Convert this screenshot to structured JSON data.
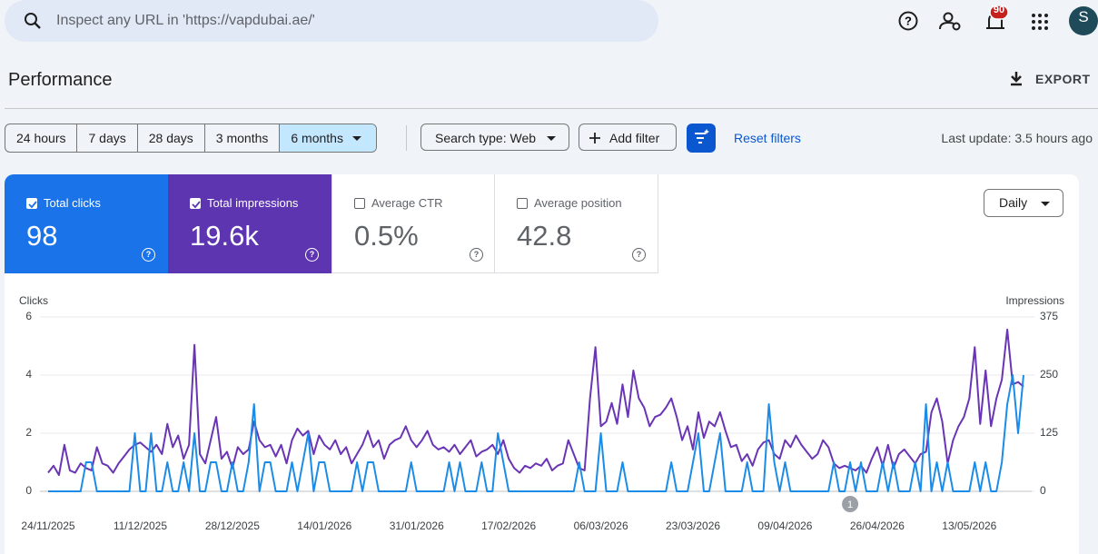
{
  "search": {
    "placeholder": "Inspect any URL in 'https://vapdubai.ae/'"
  },
  "header": {
    "notifications": "90",
    "avatar": "S"
  },
  "page": {
    "title": "Performance",
    "export": "EXPORT"
  },
  "filters": {
    "ranges": [
      "24 hours",
      "7 days",
      "28 days",
      "3 months",
      "6 months"
    ],
    "search_type": "Search type: Web",
    "add_filter": "Add filter",
    "reset": "Reset filters",
    "last_update": "Last update: 3.5 hours ago"
  },
  "metrics": [
    {
      "label": "Total clicks",
      "value": "98"
    },
    {
      "label": "Total impressions",
      "value": "19.6k"
    },
    {
      "label": "Average CTR",
      "value": "0.5%"
    },
    {
      "label": "Average position",
      "value": "42.8"
    }
  ],
  "granularity": "Daily",
  "chart_data": {
    "type": "line",
    "x": [
      "24/11/2025",
      "25/11/2025",
      "26/11/2025",
      "27/11/2025",
      "28/11/2025",
      "29/11/2025",
      "30/11/2025",
      "01/12/2025",
      "02/12/2025",
      "03/12/2025",
      "04/12/2025",
      "05/12/2025",
      "06/12/2025",
      "07/12/2025",
      "08/12/2025",
      "09/12/2025",
      "10/12/2025",
      "11/12/2025",
      "12/12/2025",
      "13/12/2025",
      "14/12/2025",
      "15/12/2025",
      "16/12/2025",
      "17/12/2025",
      "18/12/2025",
      "19/12/2025",
      "20/12/2025",
      "21/12/2025",
      "22/12/2025",
      "23/12/2025",
      "24/12/2025",
      "25/12/2025",
      "26/12/2025",
      "27/12/2025",
      "28/12/2025",
      "29/12/2025",
      "30/12/2025",
      "31/12/2025",
      "01/01/2026",
      "02/01/2026",
      "03/01/2026",
      "04/01/2026",
      "05/01/2026",
      "06/01/2026",
      "07/01/2026",
      "08/01/2026",
      "09/01/2026",
      "10/01/2026",
      "11/01/2026",
      "12/01/2026",
      "13/01/2026",
      "14/01/2026",
      "15/01/2026",
      "16/01/2026",
      "17/01/2026",
      "18/01/2026",
      "19/01/2026",
      "20/01/2026",
      "21/01/2026",
      "22/01/2026",
      "23/01/2026",
      "24/01/2026",
      "25/01/2026",
      "26/01/2026",
      "27/01/2026",
      "28/01/2026",
      "29/01/2026",
      "30/01/2026",
      "31/01/2026",
      "01/02/2026",
      "02/02/2026",
      "03/02/2026",
      "04/02/2026",
      "05/02/2026",
      "06/02/2026",
      "07/02/2026",
      "08/02/2026",
      "09/02/2026",
      "10/02/2026",
      "11/02/2026",
      "12/02/2026",
      "13/02/2026",
      "14/02/2026",
      "15/02/2026",
      "16/02/2026",
      "17/02/2026",
      "18/02/2026",
      "19/02/2026",
      "20/02/2026",
      "21/02/2026",
      "22/02/2026",
      "23/02/2026",
      "24/02/2026",
      "25/02/2026",
      "26/02/2026",
      "27/02/2026",
      "28/02/2026",
      "01/03/2026",
      "02/03/2026",
      "03/03/2026",
      "04/03/2026",
      "05/03/2026",
      "06/03/2026",
      "07/03/2026",
      "08/03/2026",
      "09/03/2026",
      "10/03/2026",
      "11/03/2026",
      "12/03/2026",
      "13/03/2026",
      "14/03/2026",
      "15/03/2026",
      "16/03/2026",
      "17/03/2026",
      "18/03/2026",
      "19/03/2026",
      "20/03/2026",
      "21/03/2026",
      "22/03/2026",
      "23/03/2026",
      "24/03/2026",
      "25/03/2026",
      "26/03/2026",
      "27/03/2026",
      "28/03/2026",
      "29/03/2026",
      "30/03/2026",
      "31/03/2026",
      "01/04/2026",
      "02/04/2026",
      "03/04/2026",
      "04/04/2026",
      "05/04/2026",
      "06/04/2026",
      "07/04/2026",
      "08/04/2026",
      "09/04/2026",
      "10/04/2026",
      "11/04/2026",
      "12/04/2026",
      "13/04/2026",
      "14/04/2026",
      "15/04/2026",
      "16/04/2026",
      "17/04/2026",
      "18/04/2026",
      "19/04/2026",
      "20/04/2026",
      "21/04/2026",
      "22/04/2026",
      "23/04/2026",
      "24/04/2026",
      "25/04/2026",
      "26/04/2026",
      "27/04/2026",
      "28/04/2026",
      "29/04/2026",
      "30/04/2026",
      "01/05/2026",
      "02/05/2026",
      "03/05/2026",
      "04/05/2026",
      "05/05/2026",
      "06/05/2026",
      "07/05/2026",
      "08/05/2026",
      "09/05/2026",
      "10/05/2026",
      "11/05/2026",
      "12/05/2026",
      "13/05/2026",
      "14/05/2026",
      "15/05/2026",
      "16/05/2026",
      "17/05/2026",
      "18/05/2026",
      "19/05/2026",
      "20/05/2026",
      "21/05/2026",
      "22/05/2026",
      "23/05/2026"
    ],
    "series": [
      {
        "name": "Clicks",
        "color": "#1a8ce8",
        "values": [
          0,
          0,
          0,
          0,
          0,
          0,
          0,
          1,
          1,
          0,
          0,
          0,
          0,
          0,
          0,
          0,
          2,
          0,
          0,
          2,
          0,
          0,
          1,
          0,
          0,
          1,
          0,
          2,
          0,
          0,
          1,
          1,
          0,
          0,
          1,
          0,
          0,
          1,
          3,
          0,
          1,
          1,
          0,
          0,
          0,
          1,
          0,
          1,
          2,
          0,
          1,
          1,
          0,
          0,
          0,
          0,
          0,
          1,
          0,
          1,
          1,
          0,
          0,
          0,
          0,
          0,
          0,
          1,
          0,
          0,
          0,
          0,
          0,
          0,
          1,
          0,
          1,
          0,
          0,
          0,
          1,
          0,
          0,
          2,
          1,
          0,
          0,
          0,
          0,
          0,
          0,
          0,
          0,
          0,
          0,
          0,
          0,
          0,
          1,
          0,
          0,
          0,
          2,
          0,
          0,
          0,
          1,
          0,
          0,
          0,
          0,
          0,
          0,
          0,
          0,
          1,
          0,
          0,
          0,
          1,
          2,
          0,
          0,
          1,
          2,
          0,
          0,
          0,
          0,
          1,
          0,
          0,
          0,
          3,
          1,
          0,
          1,
          0,
          0,
          0,
          0,
          0,
          0,
          0,
          0,
          1,
          0,
          0,
          1,
          0,
          1,
          0,
          0,
          0,
          1,
          0,
          1,
          0,
          0,
          0,
          1,
          0,
          3,
          0,
          1,
          0,
          1,
          0,
          0,
          0,
          0,
          1,
          0,
          1,
          0,
          0,
          1,
          3,
          4,
          2,
          4
        ]
      },
      {
        "name": "Impressions",
        "color": "#6a35b5",
        "axis": "y2",
        "values": [
          40,
          55,
          35,
          100,
          45,
          40,
          60,
          50,
          45,
          95,
          60,
          55,
          40,
          60,
          75,
          90,
          100,
          105,
          95,
          85,
          100,
          80,
          145,
          95,
          120,
          70,
          100,
          315,
          80,
          60,
          110,
          160,
          70,
          85,
          50,
          95,
          80,
          90,
          150,
          110,
          95,
          100,
          75,
          100,
          60,
          110,
          135,
          120,
          130,
          80,
          120,
          100,
          90,
          110,
          80,
          95,
          60,
          80,
          100,
          130,
          95,
          110,
          70,
          100,
          110,
          115,
          140,
          110,
          95,
          110,
          130,
          100,
          90,
          95,
          85,
          100,
          80,
          95,
          110,
          75,
          85,
          90,
          100,
          80,
          110,
          70,
          50,
          40,
          55,
          50,
          60,
          55,
          70,
          45,
          55,
          60,
          110,
          80,
          50,
          45,
          200,
          310,
          140,
          150,
          190,
          145,
          230,
          160,
          260,
          200,
          180,
          140,
          160,
          165,
          180,
          200,
          160,
          110,
          140,
          90,
          170,
          115,
          150,
          140,
          170,
          130,
          95,
          100,
          65,
          80,
          55,
          90,
          105,
          110,
          80,
          70,
          110,
          95,
          120,
          100,
          85,
          70,
          80,
          110,
          95,
          60,
          50,
          55,
          50,
          45,
          55,
          40,
          70,
          95,
          55,
          100,
          50,
          80,
          90,
          75,
          60,
          80,
          85,
          170,
          200,
          150,
          60,
          110,
          140,
          160,
          200,
          310,
          145,
          260,
          140,
          200,
          240,
          348,
          230,
          235,
          225
        ]
      }
    ],
    "ylim": [
      0,
      6
    ],
    "yticks": [
      0,
      2,
      4,
      6
    ],
    "y2lim": [
      0,
      375
    ],
    "y2ticks": [
      0,
      125,
      250,
      375
    ],
    "grid": true,
    "annotations": [
      {
        "x": "21/04/2026",
        "label": "1"
      }
    ]
  }
}
